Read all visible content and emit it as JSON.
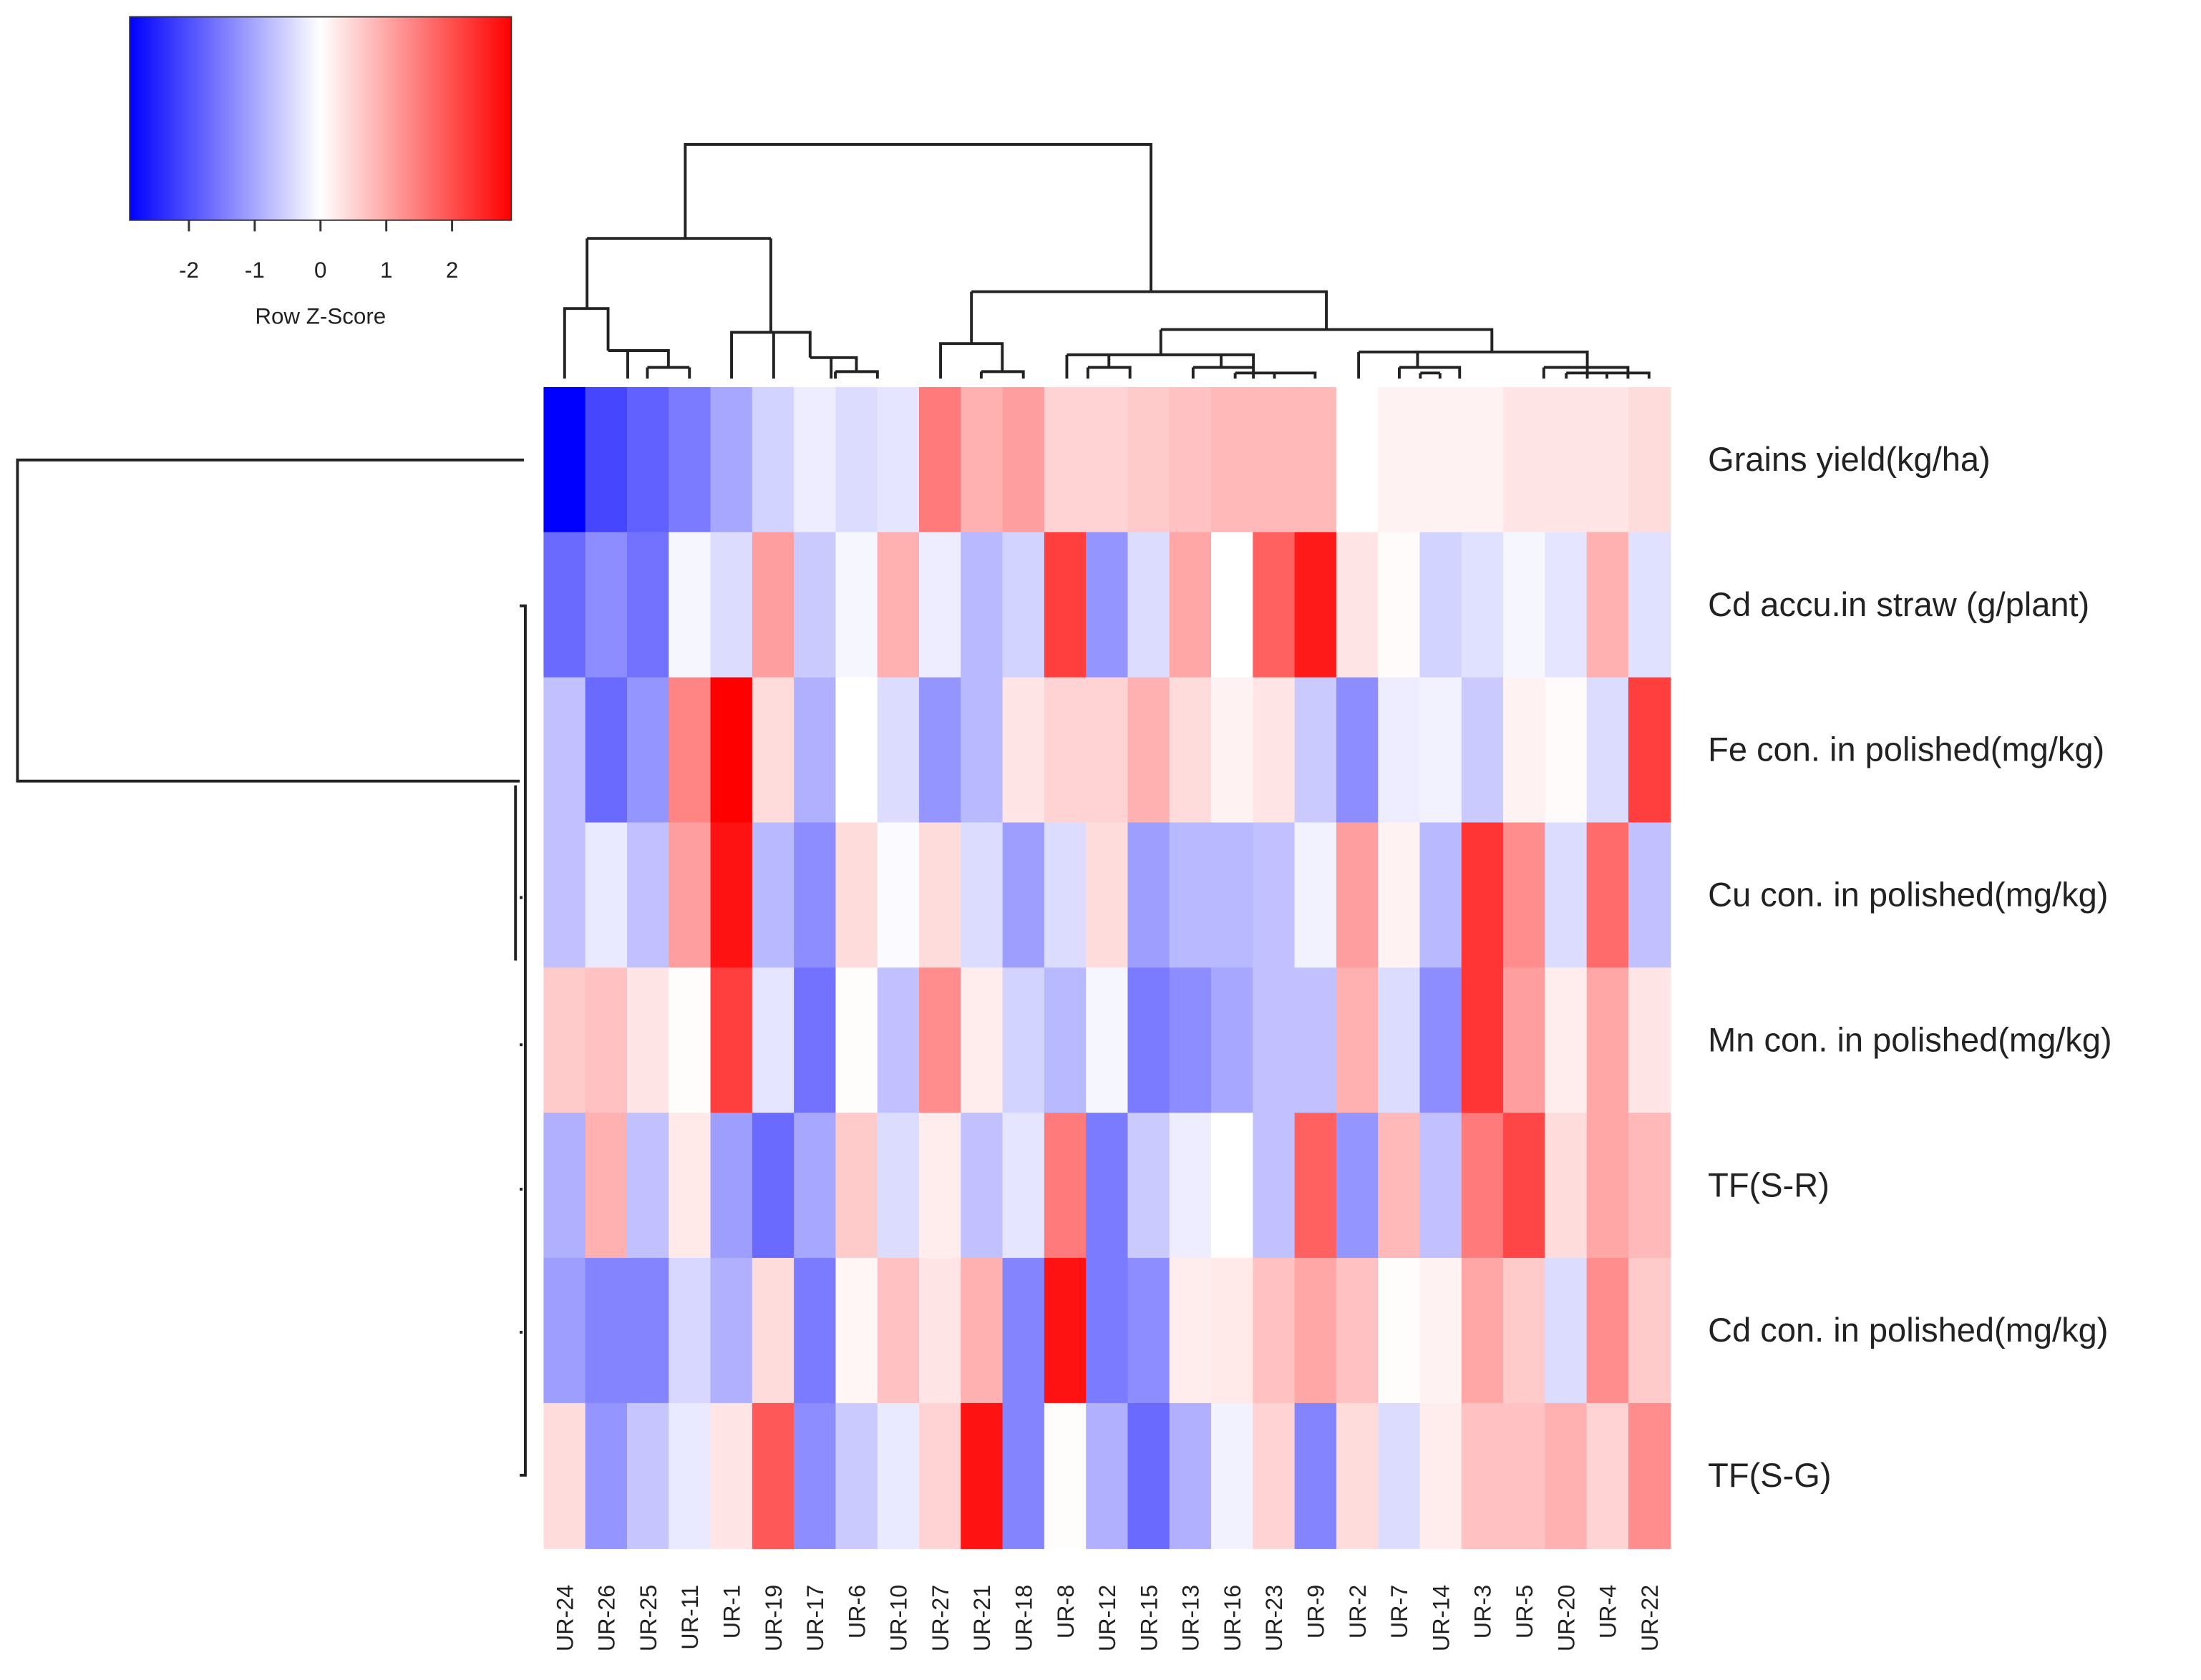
{
  "chart_data": {
    "type": "heatmap",
    "title": "",
    "color_key": {
      "label": "Row Z-Score",
      "ticks": [
        "-2",
        "-1",
        "0",
        "1",
        "2"
      ],
      "tick_values": [
        -2,
        -1,
        0,
        1,
        2
      ],
      "range": [
        -2.9,
        2.9
      ],
      "low_color": "#0000ff",
      "mid_color": "#ffffff",
      "high_color": "#ff0000"
    },
    "columns": [
      "UR-24",
      "UR-26",
      "UR-25",
      "UR-11",
      "UR-1",
      "UR-19",
      "UR-17",
      "UR-6",
      "UR-10",
      "UR-27",
      "UR-21",
      "UR-18",
      "UR-8",
      "UR-12",
      "UR-15",
      "UR-13",
      "UR-16",
      "UR-23",
      "UR-9",
      "UR-2",
      "UR-7",
      "UR-14",
      "UR-3",
      "UR-5",
      "UR-20",
      "UR-4",
      "UR-22"
    ],
    "rows": [
      "Grains yield(kg/ha)",
      "Cd accu.in straw (g/plant)",
      "Fe con. in polished(mg/kg)",
      "Cu con. in polished(mg/kg)",
      "Mn con. in polished(mg/kg)",
      "TF(S-R)",
      "Cd con. in polished(mg/kg)",
      "TF(S-G)"
    ],
    "values": [
      [
        -2.9,
        -2.1,
        -1.8,
        -1.5,
        -1.0,
        -0.5,
        -0.2,
        -0.4,
        -0.3,
        1.5,
        0.9,
        1.1,
        0.5,
        0.5,
        0.6,
        0.7,
        0.8,
        0.8,
        0.8,
        0.0,
        0.15,
        0.15,
        0.15,
        0.3,
        0.3,
        0.3,
        0.4
      ],
      [
        -1.7,
        -1.3,
        -1.6,
        -0.1,
        -0.4,
        1.1,
        -0.6,
        -0.1,
        0.9,
        -0.2,
        -0.8,
        -0.5,
        2.2,
        -1.2,
        -0.4,
        1.0,
        0.0,
        1.8,
        2.6,
        0.3,
        0.05,
        -0.5,
        -0.35,
        -0.1,
        -0.3,
        0.9,
        -0.35
      ],
      [
        -0.7,
        -1.7,
        -1.2,
        1.4,
        2.9,
        0.4,
        -0.9,
        0.0,
        -0.4,
        -1.2,
        -0.8,
        0.3,
        0.5,
        0.5,
        0.9,
        0.4,
        0.15,
        0.3,
        -0.6,
        -1.3,
        -0.2,
        -0.15,
        -0.6,
        0.15,
        0.05,
        -0.4,
        2.2
      ],
      [
        -0.7,
        -0.25,
        -0.7,
        1.1,
        2.7,
        -0.8,
        -1.3,
        0.4,
        -0.05,
        0.4,
        -0.4,
        -1.1,
        -0.4,
        0.4,
        -1.1,
        -0.8,
        -0.8,
        -0.7,
        -0.15,
        1.1,
        0.15,
        -0.8,
        2.3,
        1.3,
        -0.4,
        1.7,
        -0.7
      ],
      [
        0.6,
        0.7,
        0.3,
        0.03,
        2.2,
        -0.3,
        -1.6,
        0.03,
        -0.7,
        1.3,
        0.2,
        -0.5,
        -0.8,
        -0.1,
        -1.5,
        -1.3,
        -1.0,
        -0.7,
        -0.7,
        0.9,
        -0.4,
        -1.3,
        2.3,
        1.1,
        0.2,
        1.0,
        0.3
      ],
      [
        -0.9,
        0.9,
        -0.7,
        0.25,
        -1.1,
        -1.7,
        -1.0,
        0.6,
        -0.4,
        0.2,
        -0.7,
        -0.3,
        1.5,
        -1.5,
        -0.6,
        -0.2,
        0.0,
        -0.7,
        1.8,
        -1.2,
        0.8,
        -0.7,
        1.5,
        2.1,
        0.4,
        1.0,
        0.8
      ],
      [
        -1.1,
        -1.4,
        -1.4,
        -0.45,
        -0.9,
        0.4,
        -1.5,
        0.1,
        0.7,
        0.3,
        0.9,
        -1.4,
        2.7,
        -1.5,
        -1.3,
        0.2,
        0.25,
        0.7,
        1.0,
        0.7,
        0.03,
        0.15,
        1.0,
        0.6,
        -0.4,
        1.3,
        0.6
      ],
      [
        0.4,
        -1.2,
        -0.65,
        -0.25,
        0.3,
        1.9,
        -1.3,
        -0.6,
        -0.25,
        0.5,
        2.7,
        -1.4,
        0.03,
        -0.9,
        -1.7,
        -0.9,
        -0.15,
        0.5,
        -1.4,
        0.4,
        -0.4,
        0.2,
        0.7,
        0.7,
        0.9,
        0.5,
        1.3
      ]
    ],
    "row_dendrogram": true,
    "column_dendrogram": true,
    "legend_placement": "top-left"
  }
}
